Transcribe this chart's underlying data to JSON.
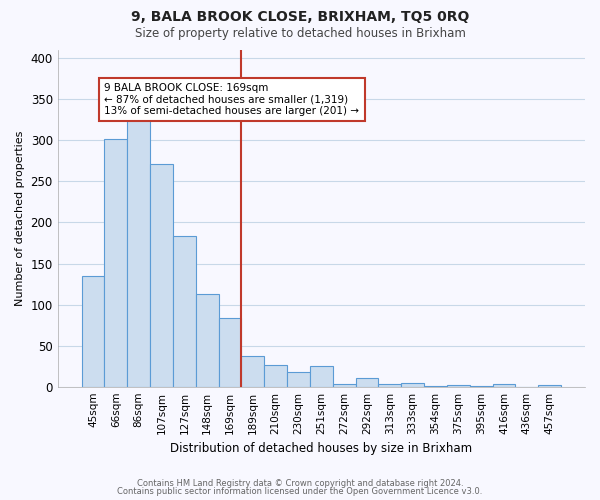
{
  "title": "9, BALA BROOK CLOSE, BRIXHAM, TQ5 0RQ",
  "subtitle": "Size of property relative to detached houses in Brixham",
  "xlabel": "Distribution of detached houses by size in Brixham",
  "ylabel": "Number of detached properties",
  "bar_labels": [
    "45sqm",
    "66sqm",
    "86sqm",
    "107sqm",
    "127sqm",
    "148sqm",
    "169sqm",
    "189sqm",
    "210sqm",
    "230sqm",
    "251sqm",
    "272sqm",
    "292sqm",
    "313sqm",
    "333sqm",
    "354sqm",
    "375sqm",
    "395sqm",
    "416sqm",
    "436sqm",
    "457sqm"
  ],
  "bar_values": [
    135,
    302,
    325,
    271,
    183,
    113,
    84,
    37,
    27,
    18,
    25,
    3,
    11,
    3,
    5,
    1,
    2,
    1,
    3,
    0,
    2
  ],
  "bar_color": "#ccddef",
  "bar_edge_color": "#5b9bd5",
  "highlight_index": 6,
  "highlight_line_color": "#c0392b",
  "annotation_line1": "9 BALA BROOK CLOSE: 169sqm",
  "annotation_line2": "← 87% of detached houses are smaller (1,319)",
  "annotation_line3": "13% of semi-detached houses are larger (201) →",
  "annotation_box_color": "#ffffff",
  "annotation_box_edge": "#c0392b",
  "ylim": [
    0,
    410
  ],
  "yticks": [
    0,
    50,
    100,
    150,
    200,
    250,
    300,
    350,
    400
  ],
  "footer_line1": "Contains HM Land Registry data © Crown copyright and database right 2024.",
  "footer_line2": "Contains public sector information licensed under the Open Government Licence v3.0.",
  "bg_color": "#f8f8ff",
  "grid_color": "#c8d8e8"
}
